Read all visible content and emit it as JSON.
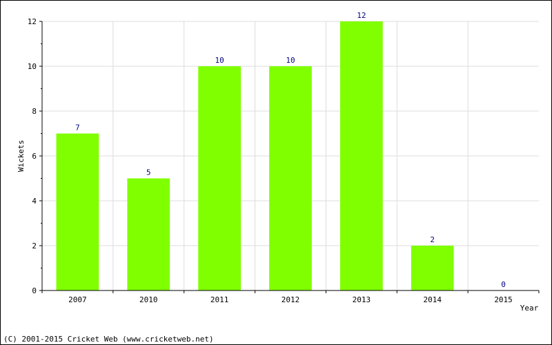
{
  "chart_data": {
    "type": "bar",
    "categories": [
      "2007",
      "2010",
      "2011",
      "2012",
      "2013",
      "2014",
      "2015"
    ],
    "values": [
      7,
      5,
      10,
      10,
      12,
      2,
      0
    ],
    "title": "",
    "xlabel": "Year",
    "ylabel": "Wickets",
    "ylim": [
      0,
      12
    ],
    "yticks": [
      0,
      2,
      4,
      6,
      8,
      10,
      12
    ],
    "grid": true,
    "bar_color": "#80ff00",
    "label_color": "#000080"
  },
  "footer": {
    "copyright": "(C) 2001-2015 Cricket Web (www.cricketweb.net)"
  }
}
